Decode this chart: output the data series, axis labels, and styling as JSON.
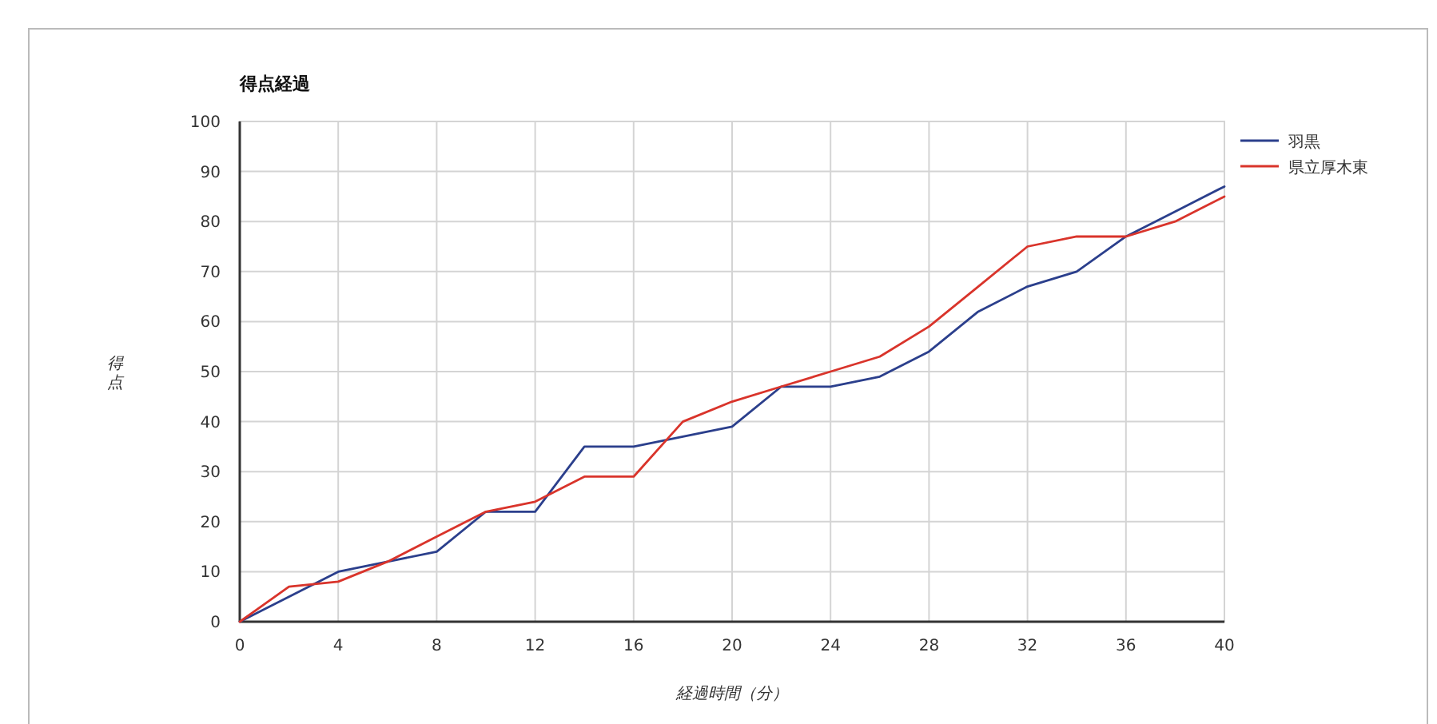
{
  "chart_data": {
    "type": "line",
    "title": "得点経過",
    "xlabel": "経過時間（分）",
    "ylabel": "得点",
    "x": [
      0,
      2,
      4,
      6,
      8,
      10,
      12,
      14,
      16,
      18,
      20,
      22,
      24,
      26,
      28,
      30,
      32,
      34,
      36,
      38,
      40
    ],
    "series": [
      {
        "name": "羽黒",
        "color": "#2b3f8c",
        "values": [
          0,
          5,
          10,
          12,
          14,
          22,
          22,
          35,
          35,
          37,
          39,
          47,
          47,
          49,
          54,
          62,
          67,
          70,
          77,
          82,
          87
        ]
      },
      {
        "name": "県立厚木東",
        "color": "#d9342b",
        "values": [
          0,
          7,
          8,
          12,
          17,
          22,
          24,
          29,
          29,
          40,
          44,
          47,
          50,
          53,
          59,
          67,
          75,
          77,
          77,
          80,
          85
        ]
      }
    ],
    "xlim": [
      0,
      40
    ],
    "xticks": [
      0,
      4,
      8,
      12,
      16,
      20,
      24,
      28,
      32,
      36,
      40
    ],
    "ylim": [
      0,
      100
    ],
    "yticks": [
      0,
      10,
      20,
      30,
      40,
      50,
      60,
      70,
      80,
      90,
      100
    ],
    "grid": true,
    "legend": "top right",
    "marker": "none",
    "line_style": "solid"
  }
}
